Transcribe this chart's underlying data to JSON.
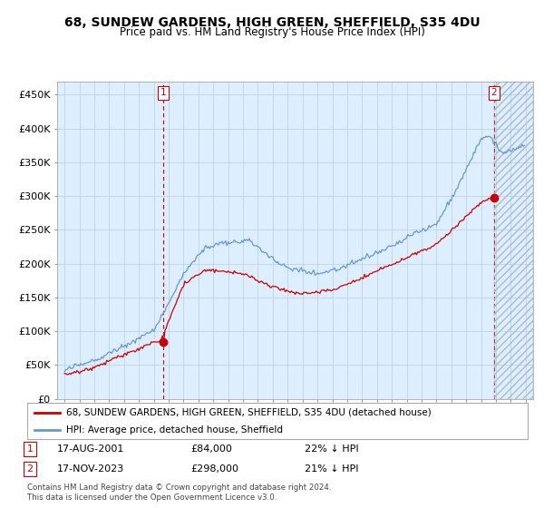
{
  "title": "68, SUNDEW GARDENS, HIGH GREEN, SHEFFIELD, S35 4DU",
  "subtitle": "Price paid vs. HM Land Registry's House Price Index (HPI)",
  "legend_line1": "68, SUNDEW GARDENS, HIGH GREEN, SHEFFIELD, S35 4DU (detached house)",
  "legend_line2": "HPI: Average price, detached house, Sheffield",
  "footer": "Contains HM Land Registry data © Crown copyright and database right 2024.\nThis data is licensed under the Open Government Licence v3.0.",
  "sale1_label": "1",
  "sale1_date": "17-AUG-2001",
  "sale1_price": "£84,000",
  "sale1_hpi": "22% ↓ HPI",
  "sale1_year": 2001.63,
  "sale1_value": 84000,
  "sale2_label": "2",
  "sale2_date": "17-NOV-2023",
  "sale2_price": "£298,000",
  "sale2_hpi": "21% ↓ HPI",
  "sale2_year": 2023.88,
  "sale2_value": 298000,
  "ylim": [
    0,
    470000
  ],
  "yticks": [
    0,
    50000,
    100000,
    150000,
    200000,
    250000,
    300000,
    350000,
    400000,
    450000
  ],
  "ytick_labels": [
    "£0",
    "£50K",
    "£100K",
    "£150K",
    "£200K",
    "£250K",
    "£300K",
    "£350K",
    "£400K",
    "£450K"
  ],
  "hpi_color": "#6699cc",
  "price_color": "#cc0000",
  "vline_color": "#cc0000",
  "bg_chart": "#ddeeff",
  "background_color": "#ffffff",
  "grid_color": "#bbccdd",
  "xlim_start": 1994.5,
  "xlim_end": 2026.5
}
